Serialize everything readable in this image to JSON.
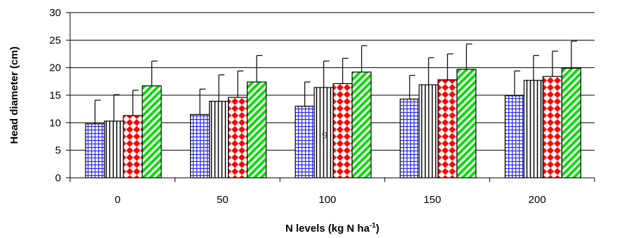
{
  "chart_data": {
    "type": "bar",
    "title": "",
    "xlabel": "N levels (kg N ha",
    "xlabel_sup": "-1",
    "xlabel_end": ")",
    "ylabel": "Head diameter (cm)",
    "ylim": [
      0,
      30
    ],
    "yticks": [
      0,
      5,
      10,
      15,
      20,
      25,
      30
    ],
    "grid": true,
    "legend": "none",
    "stray_text": "9",
    "categories": [
      "0",
      "50",
      "100",
      "150",
      "200"
    ],
    "series": [
      {
        "values": [
          9.8,
          11.5,
          13.0,
          14.3,
          14.9
        ],
        "errors": [
          4.3,
          4.6,
          4.4,
          4.3,
          4.5
        ],
        "pattern": "grid",
        "color": "#2b2bff"
      },
      {
        "values": [
          10.3,
          13.9,
          16.4,
          16.9,
          17.7
        ],
        "errors": [
          4.8,
          4.8,
          4.8,
          4.9,
          4.5
        ],
        "pattern": "vlines",
        "color": "#000000"
      },
      {
        "values": [
          11.3,
          14.6,
          17.1,
          17.8,
          18.4
        ],
        "errors": [
          4.6,
          4.8,
          4.6,
          4.7,
          4.6
        ],
        "pattern": "diamonds",
        "color": "#ff0000"
      },
      {
        "values": [
          16.7,
          17.4,
          19.2,
          19.7,
          19.9
        ],
        "errors": [
          4.5,
          4.8,
          4.8,
          4.6,
          4.9
        ],
        "pattern": "diagonal",
        "color": "#00dd00"
      }
    ]
  }
}
